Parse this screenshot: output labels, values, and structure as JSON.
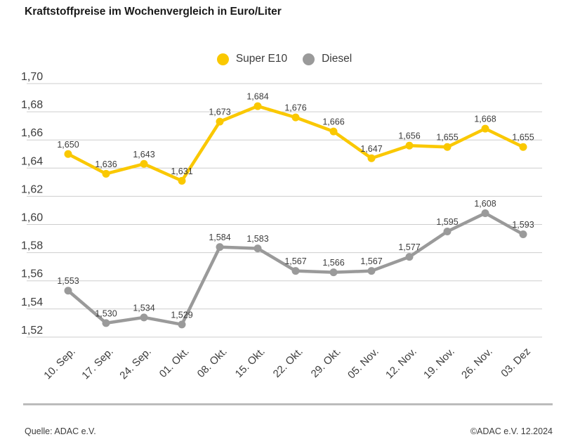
{
  "chart_data": {
    "type": "line",
    "title": "Kraftstoffpreise im Wochenvergleich in Euro/Liter",
    "unit": "Euro/Liter",
    "categories": [
      "10. Sep.",
      "17. Sep.",
      "24. Sep.",
      "01. Okt.",
      "08. Okt.",
      "15. Okt.",
      "22. Okt.",
      "29. Okt.",
      "05. Nov.",
      "12. Nov.",
      "19. Nov.",
      "26. Nov.",
      "03. Dez"
    ],
    "series": [
      {
        "name": "Super E10",
        "color": "#FAC800",
        "values": [
          1.65,
          1.636,
          1.643,
          1.631,
          1.673,
          1.684,
          1.676,
          1.666,
          1.647,
          1.656,
          1.655,
          1.668,
          1.655
        ]
      },
      {
        "name": "Diesel",
        "color": "#9A9A9A",
        "values": [
          1.553,
          1.53,
          1.534,
          1.529,
          1.584,
          1.583,
          1.567,
          1.566,
          1.567,
          1.577,
          1.595,
          1.608,
          1.593
        ]
      }
    ],
    "yticks": [
      "1,70",
      "1,68",
      "1,66",
      "1,64",
      "1,62",
      "1,60",
      "1,58",
      "1,56",
      "1,54",
      "1,52"
    ],
    "ylim": [
      1.52,
      1.7
    ],
    "grid": true,
    "legend_position": "top-center",
    "decimal_separator": ",",
    "grid_color": "#cdcdcd",
    "text_color": "#3c3c3c"
  },
  "footer": {
    "source": "Quelle: ADAC e.V.",
    "copyright": "©ADAC e.V. 12.2024"
  }
}
